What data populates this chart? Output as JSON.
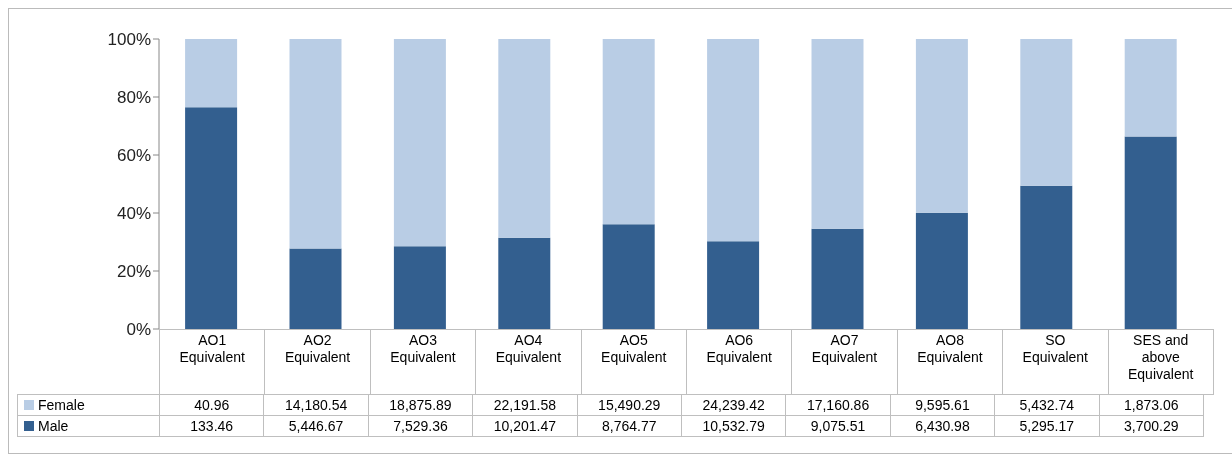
{
  "chart_data": {
    "type": "bar",
    "stacked": true,
    "legend": "bottom",
    "categories": [
      "AO1 Equivalent",
      "AO2 Equivalent",
      "AO3 Equivalent",
      "AO4 Equivalent",
      "AO5 Equivalent",
      "AO6 Equivalent",
      "AO7 Equivalent",
      "AO8 Equivalent",
      "SO Equivalent",
      "SES and above Equivalent"
    ],
    "ylim": [
      0,
      100
    ],
    "yticks": [
      {
        "value": 0,
        "label": "0%"
      },
      {
        "value": 20,
        "label": "20%"
      },
      {
        "value": 40,
        "label": "40%"
      },
      {
        "value": 60,
        "label": "60%"
      },
      {
        "value": 80,
        "label": "80%"
      },
      {
        "value": 100,
        "label": "100%"
      }
    ],
    "series": [
      {
        "name": "Male",
        "color": "#335f8f",
        "values": [
          76.5,
          27.8,
          28.5,
          31.5,
          36.1,
          30.3,
          34.6,
          40.1,
          49.4,
          66.4
        ]
      },
      {
        "name": "Female",
        "color": "#b9cde5",
        "values": [
          23.5,
          72.2,
          71.5,
          68.5,
          63.9,
          69.7,
          65.4,
          59.9,
          50.6,
          33.6
        ]
      }
    ],
    "annotations": [
      "40.96",
      "14,180.54",
      "18,875.89",
      "22,191.58",
      "15,490.29",
      "24,239.42",
      "17,160.86",
      "9,595.61",
      "5,432.74",
      "1,873.06",
      "133.46",
      "5,446.67",
      "7,529.36",
      "10,201.47",
      "8,764.77",
      "10,532.79",
      "9,075.51",
      "6,430.98",
      "5,295.17",
      "3,700.29"
    ]
  }
}
